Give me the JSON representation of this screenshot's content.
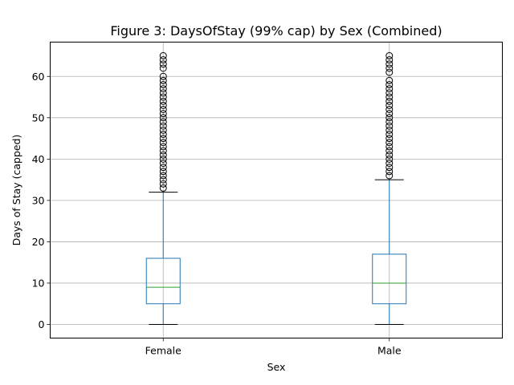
{
  "chart_data": {
    "type": "box",
    "title": "Figure 3: DaysOfStay (99% cap) by Sex (Combined)",
    "xlabel": "Sex",
    "ylabel": "Days of Stay (capped)",
    "categories": [
      "Female",
      "Male"
    ],
    "ylim": [
      -3.3,
      68.3
    ],
    "yticks": [
      0,
      10,
      20,
      30,
      40,
      50,
      60
    ],
    "grid": true,
    "legend": "none",
    "boxes": [
      {
        "category": "Female",
        "whisker_low": 0,
        "q1": 5,
        "median": 9,
        "q3": 16,
        "whisker_high": 32,
        "outliers": [
          33,
          34,
          35,
          36,
          37,
          38,
          39,
          40,
          41,
          42,
          43,
          44,
          45,
          46,
          47,
          48,
          49,
          50,
          51,
          52,
          53,
          54,
          55,
          56,
          57,
          58,
          59,
          60,
          62,
          63,
          64,
          65
        ]
      },
      {
        "category": "Male",
        "whisker_low": 0,
        "q1": 5,
        "median": 10,
        "q3": 17,
        "whisker_high": 35,
        "outliers": [
          36,
          37,
          38,
          39,
          40,
          41,
          42,
          43,
          44,
          45,
          46,
          47,
          48,
          49,
          50,
          51,
          52,
          53,
          54,
          55,
          56,
          57,
          58,
          59,
          61,
          62,
          63,
          64,
          65
        ]
      }
    ],
    "colors": {
      "box": "#1f77b4",
      "whisker": "#1f77b4",
      "cap": "#000000",
      "median": "#2ca02c",
      "outlier": "#000000",
      "grid": "#b0b0b0"
    }
  }
}
